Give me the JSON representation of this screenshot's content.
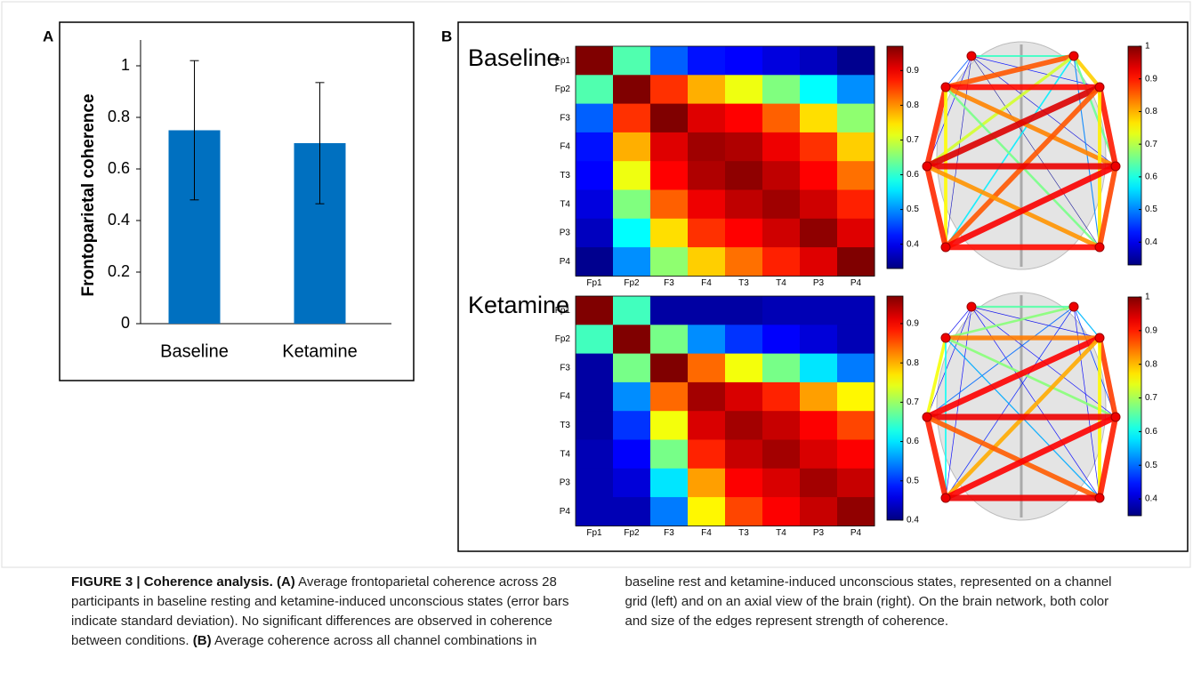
{
  "chart_data": [
    {
      "type": "bar",
      "panel": "A",
      "categories": [
        "Baseline",
        "Ketamine"
      ],
      "values": [
        0.75,
        0.7
      ],
      "errors": [
        0.27,
        0.235
      ],
      "color": "#0070c0",
      "ylabel": "Frontoparietal coherence",
      "ylim": [
        0,
        1.1
      ],
      "yticks": [
        0,
        0.2,
        0.4,
        0.6,
        0.8,
        1
      ]
    },
    {
      "type": "heatmap",
      "panel": "B",
      "title": "Baseline",
      "colormap": "jet",
      "columns": [
        "Fp1",
        "Fp2",
        "F3",
        "F4",
        "T3",
        "T4",
        "P3",
        "P4"
      ],
      "rows": [
        "Fp1",
        "Fp2",
        "F3",
        "F4",
        "T3",
        "T4",
        "P3",
        "P4"
      ],
      "values": [
        [
          0.97,
          0.62,
          0.47,
          0.42,
          0.41,
          0.39,
          0.37,
          0.34
        ],
        [
          0.62,
          0.97,
          0.86,
          0.78,
          0.72,
          0.65,
          0.57,
          0.5
        ],
        [
          0.47,
          0.86,
          0.97,
          0.91,
          0.89,
          0.83,
          0.75,
          0.66
        ],
        [
          0.42,
          0.78,
          0.91,
          0.95,
          0.94,
          0.9,
          0.86,
          0.76
        ],
        [
          0.41,
          0.72,
          0.89,
          0.94,
          0.96,
          0.93,
          0.89,
          0.82
        ],
        [
          0.39,
          0.65,
          0.83,
          0.9,
          0.93,
          0.95,
          0.92,
          0.87
        ],
        [
          0.37,
          0.57,
          0.75,
          0.86,
          0.89,
          0.92,
          0.96,
          0.91
        ],
        [
          0.34,
          0.5,
          0.66,
          0.76,
          0.82,
          0.87,
          0.91,
          0.97
        ]
      ],
      "clim": [
        0.33,
        0.97
      ],
      "cticks": [
        0.4,
        0.5,
        0.6,
        0.7,
        0.8,
        0.9
      ],
      "network": {
        "colormap": "jet",
        "clim": [
          0.33,
          1
        ],
        "cticks": [
          0.4,
          0.5,
          0.6,
          0.7,
          0.8,
          0.9,
          1
        ]
      }
    },
    {
      "type": "heatmap",
      "title": "Ketamine",
      "colormap": "jet",
      "columns": [
        "Fp1",
        "Fp2",
        "F3",
        "F4",
        "T3",
        "T4",
        "P3",
        "P4"
      ],
      "rows": [
        "Fp1",
        "Fp2",
        "F3",
        "F4",
        "T3",
        "T4",
        "P3",
        "P4"
      ],
      "values": [
        [
          0.97,
          0.65,
          0.42,
          0.42,
          0.42,
          0.43,
          0.43,
          0.43
        ],
        [
          0.65,
          0.97,
          0.68,
          0.55,
          0.5,
          0.47,
          0.45,
          0.43
        ],
        [
          0.42,
          0.68,
          0.97,
          0.84,
          0.75,
          0.68,
          0.6,
          0.54
        ],
        [
          0.42,
          0.55,
          0.84,
          0.95,
          0.92,
          0.88,
          0.81,
          0.76
        ],
        [
          0.42,
          0.5,
          0.75,
          0.92,
          0.95,
          0.93,
          0.9,
          0.86
        ],
        [
          0.43,
          0.47,
          0.68,
          0.88,
          0.93,
          0.95,
          0.92,
          0.9
        ],
        [
          0.43,
          0.45,
          0.6,
          0.81,
          0.9,
          0.92,
          0.95,
          0.93
        ],
        [
          0.43,
          0.43,
          0.54,
          0.76,
          0.86,
          0.9,
          0.93,
          0.96
        ]
      ],
      "clim": [
        0.4,
        0.97
      ],
      "cticks": [
        0.4,
        0.5,
        0.6,
        0.7,
        0.8,
        0.9
      ],
      "network": {
        "colormap": "jet",
        "clim": [
          0.35,
          1
        ],
        "cticks": [
          0.4,
          0.5,
          0.6,
          0.7,
          0.8,
          0.9,
          1
        ]
      }
    }
  ],
  "caption": {
    "title": "FIGURE 3 | Coherence analysis.",
    "sections": [
      {
        "label": "(A)",
        "text": "Average frontoparietal coherence across 28 participants in baseline resting and ketamine-induced unconscious states (error bars indicate standard deviation). No significant differences are observed in coherence between conditions."
      },
      {
        "label": "(B)",
        "text": "Average coherence across all channel combinations in baseline rest and ketamine-induced unconscious states, represented on a channel grid (left) and on an axial view of the brain (right). On the brain network, both color and size of the edges represent strength of coherence."
      }
    ]
  }
}
